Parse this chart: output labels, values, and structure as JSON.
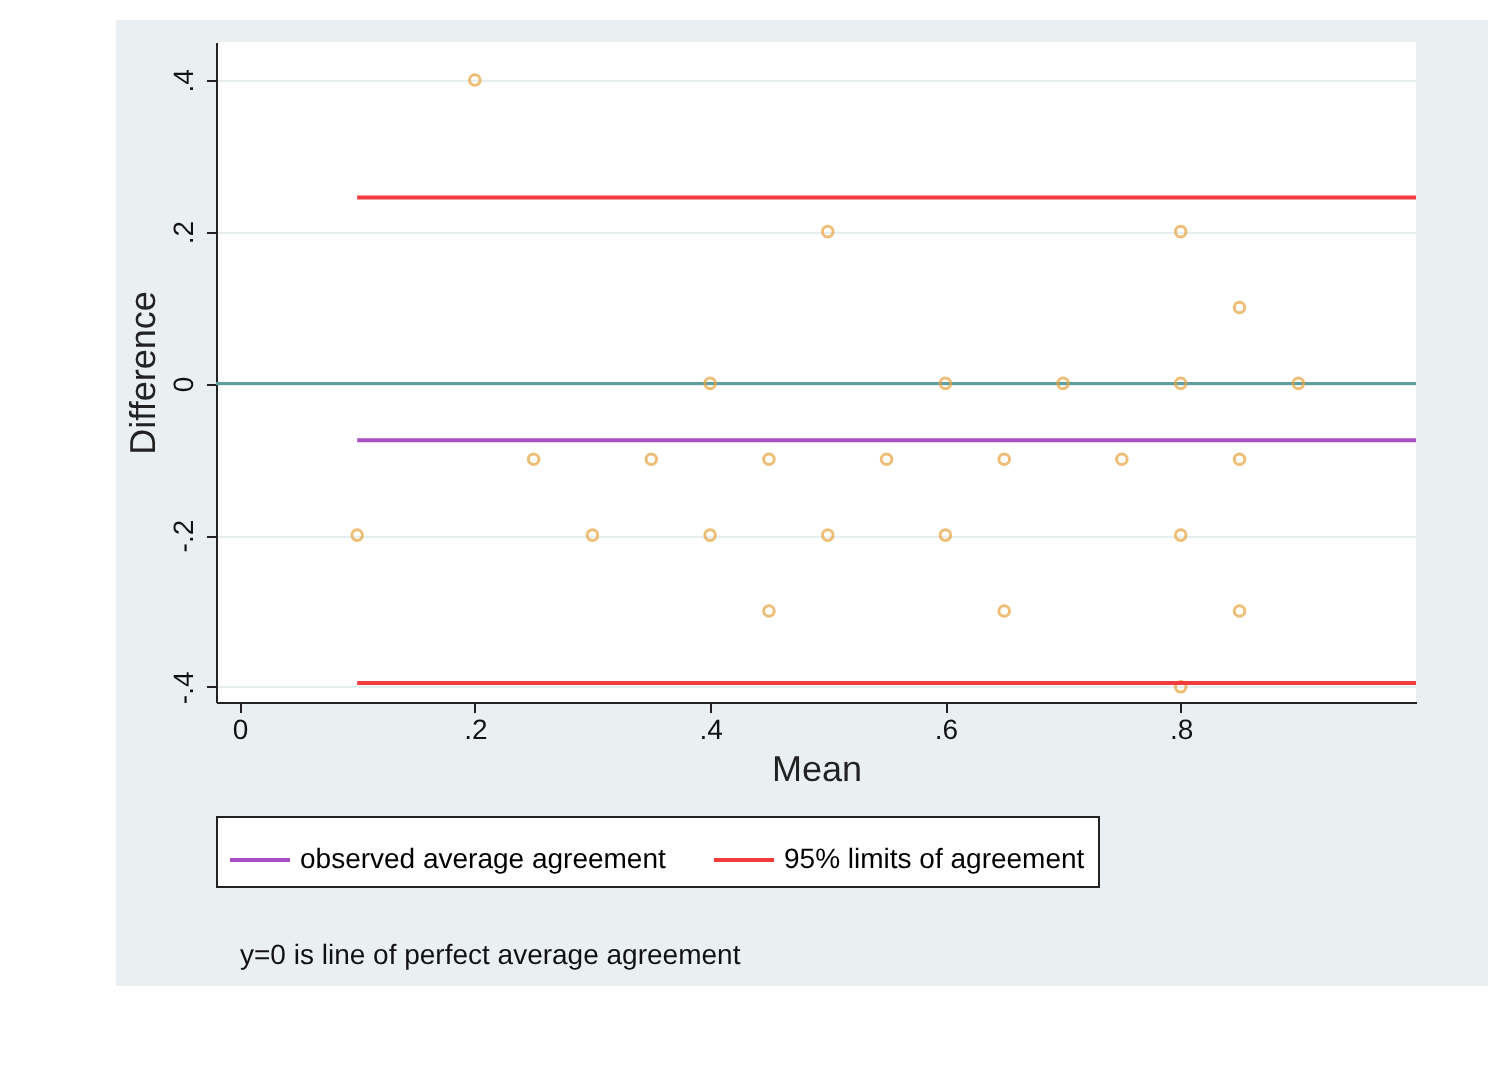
{
  "chart_data": {
    "type": "scatter",
    "xlabel": "Mean",
    "ylabel": "Difference",
    "xlim": [
      -0.02,
      1.0
    ],
    "ylim": [
      -0.42,
      0.45
    ],
    "xticks": [
      0,
      {
        "value": 0.2,
        "label": ".2"
      },
      {
        "value": 0.4,
        "label": ".4"
      },
      {
        "value": 0.6,
        "label": ".6"
      },
      {
        "value": 0.8,
        "label": ".8"
      }
    ],
    "yticks": [
      {
        "value": -0.4,
        "label": "-.4"
      },
      {
        "value": -0.2,
        "label": "-.2"
      },
      0,
      {
        "value": 0.2,
        "label": ".2"
      },
      {
        "value": 0.4,
        "label": ".4"
      }
    ],
    "grid": "y",
    "legend": "bottom",
    "ref_lines": [
      {
        "axis": "y",
        "value": 0,
        "color": "#5f9ea0"
      }
    ],
    "series": [
      {
        "type": "scatter",
        "marker": "circle",
        "color": "#e8a33d",
        "x": [
          0.2,
          0.5,
          0.8,
          0.85,
          0.4,
          0.6,
          0.7,
          0.8,
          0.9,
          0.25,
          0.35,
          0.45,
          0.55,
          0.65,
          0.75,
          0.85,
          0.1,
          0.3,
          0.4,
          0.5,
          0.6,
          0.8,
          0.45,
          0.65,
          0.85,
          0.8
        ],
        "values": [
          0.4,
          0.2,
          0.2,
          0.1,
          0,
          0,
          0,
          0,
          0,
          -0.1,
          -0.1,
          -0.1,
          -0.1,
          -0.1,
          -0.1,
          -0.1,
          -0.2,
          -0.2,
          -0.2,
          -0.2,
          -0.2,
          -0.2,
          -0.3,
          -0.3,
          -0.3,
          -0.4
        ]
      },
      {
        "type": "line",
        "name": "observed average agreement",
        "color": "#a94fc4",
        "x": [
          0.1,
          1.0
        ],
        "values": [
          -0.075,
          -0.075
        ]
      },
      {
        "type": "line",
        "name": "95% limits of agreement",
        "color": "#f03c3c",
        "x": [
          0.1,
          1.0
        ],
        "values": [
          0.245,
          0.245
        ]
      },
      {
        "type": "line",
        "color": "#f03c3c",
        "x": [
          0.1,
          1.0
        ],
        "values": [
          -0.395,
          -0.395
        ]
      }
    ],
    "annotations": [
      "y=0 is line of perfect average agreement"
    ]
  }
}
